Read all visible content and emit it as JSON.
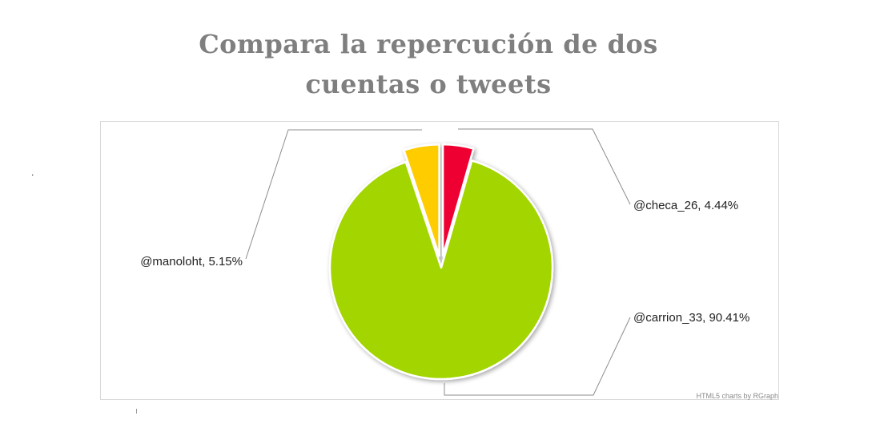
{
  "title": {
    "line1": "Compara la repercución de dos",
    "line2": "cuentas o tweets"
  },
  "stray_text": ".",
  "credit": "HTML5 charts by RGraph",
  "chart_data": {
    "type": "pie",
    "title": "Compara la repercución de dos cuentas o tweets",
    "slices": [
      {
        "name": "@checa_26",
        "value": 4.44,
        "label": "@checa_26, 4.44%",
        "color": "#ef0030",
        "exploded": true
      },
      {
        "name": "@carrion_33",
        "value": 90.41,
        "label": "@carrion_33, 90.41%",
        "color": "#a3d500",
        "exploded": false
      },
      {
        "name": "@manoloht",
        "value": 5.15,
        "label": "@manoloht, 5.15%",
        "color": "#ffcc00",
        "exploded": true
      }
    ],
    "start_angle": "top",
    "direction": "clockwise",
    "border_color": "#ffffff",
    "shadow": true,
    "labels_sticks": true
  }
}
